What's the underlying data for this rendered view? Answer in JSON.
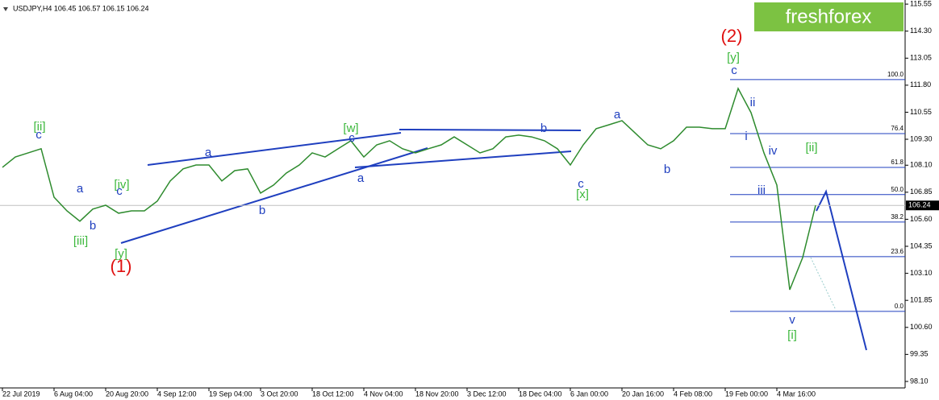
{
  "chart_data": {
    "type": "line",
    "title": "USDJPY,H4 106.45 106.57 106.15 106.24",
    "logo": "freshforex",
    "categories": [
      "22 Jul 2019",
      null,
      null,
      null,
      "6 Aug 04:00",
      null,
      null,
      null,
      "20 Aug 20:00",
      null,
      null,
      null,
      "4 Sep 12:00",
      null,
      null,
      null,
      "19 Sep 04:00",
      null,
      null,
      null,
      "3 Oct 20:00",
      null,
      null,
      null,
      "18 Oct 12:00",
      null,
      null,
      null,
      "4 Nov 04:00",
      null,
      null,
      null,
      "18 Nov 20:00",
      null,
      null,
      null,
      "3 Dec 12:00",
      null,
      null,
      null,
      "18 Dec 04:00",
      null,
      null,
      null,
      "6 Jan 00:00",
      null,
      null,
      null,
      "20 Jan 16:00",
      null,
      null,
      null,
      "4 Feb 08:00",
      null,
      null,
      null,
      "19 Feb 00:00",
      null,
      null,
      null,
      "4 Mar 16:00",
      null,
      null,
      null
    ],
    "series": [
      {
        "color": "#2e8b2e",
        "values": [
          108.0,
          108.48,
          108.67,
          108.86,
          106.62,
          105.99,
          105.51,
          106.07,
          106.25,
          105.88,
          105.99,
          105.99,
          106.44,
          107.37,
          107.93,
          108.11,
          108.11,
          107.37,
          107.85,
          107.93,
          106.81,
          107.18,
          107.74,
          108.11,
          108.67,
          108.48,
          108.86,
          109.23,
          108.48,
          109.04,
          109.23,
          108.86,
          108.67,
          108.86,
          109.04,
          109.41,
          109.04,
          108.67,
          108.86,
          109.41,
          109.49,
          109.41,
          109.23,
          108.86,
          108.11,
          109.04,
          109.79,
          109.97,
          110.16,
          109.6,
          109.04,
          108.86,
          109.23,
          109.86,
          109.86,
          109.79,
          109.79,
          111.65,
          110.53,
          108.67,
          107.18,
          102.34,
          103.83,
          106.24
        ]
      }
    ],
    "ylim": [
      97.8,
      115.74
    ],
    "yticks": [
      115.55,
      {
        "value": 114.3,
        "label": "114.30"
      },
      113.05,
      {
        "value": 111.8,
        "label": "111.80"
      },
      110.55,
      {
        "value": 109.3,
        "label": "109.30"
      },
      {
        "value": 108.1,
        "label": "108.10"
      },
      106.85,
      {
        "value": 105.6,
        "label": "105.60"
      },
      104.35,
      {
        "value": 103.1,
        "label": "103.10"
      },
      101.85,
      {
        "value": 100.6,
        "label": "100.60"
      },
      99.35,
      {
        "value": 98.1,
        "label": "98.10"
      }
    ],
    "current_price": 106.24,
    "fib_levels": [
      {
        "label": "100.0",
        "price": 112.06
      },
      {
        "label": "76.4",
        "price": 109.56
      },
      {
        "label": "61.8",
        "price": 108.0
      },
      {
        "label": "50.0",
        "price": 106.74
      },
      {
        "label": "38.2",
        "price": 105.47
      },
      {
        "label": "23.6",
        "price": 103.87
      },
      {
        "label": "0.0",
        "price": 101.34
      }
    ],
    "annotations": [
      {
        "text": "c",
        "color": "#1f3fbf"
      },
      {
        "text": "[ii]",
        "color": "#3cb83c"
      },
      {
        "text": "a",
        "color": "#1f3fbf"
      },
      {
        "text": "b",
        "color": "#1f3fbf"
      },
      {
        "text": "[iii]",
        "color": "#3cb83c"
      },
      {
        "text": "[iv]",
        "color": "#3cb83c"
      },
      {
        "text": "c",
        "color": "#1f3fbf"
      },
      {
        "text": "[y]",
        "color": "#3cb83c"
      },
      {
        "text": "(1)",
        "color": "#e01010"
      },
      {
        "text": "a",
        "color": "#1f3fbf"
      },
      {
        "text": "b",
        "color": "#1f3fbf"
      },
      {
        "text": "[w]",
        "color": "#3cb83c"
      },
      {
        "text": "c",
        "color": "#1f3fbf"
      },
      {
        "text": "a",
        "color": "#1f3fbf"
      },
      {
        "text": "b",
        "color": "#1f3fbf"
      },
      {
        "text": "c",
        "color": "#1f3fbf"
      },
      {
        "text": "[x]",
        "color": "#3cb83c"
      },
      {
        "text": "a",
        "color": "#1f3fbf"
      },
      {
        "text": "b",
        "color": "#1f3fbf"
      },
      {
        "text": "(2)",
        "color": "#e01010"
      },
      {
        "text": "[y]",
        "color": "#3cb83c"
      },
      {
        "text": "c",
        "color": "#1f3fbf"
      },
      {
        "text": "ii",
        "color": "#1f3fbf"
      },
      {
        "text": "i",
        "color": "#1f3fbf"
      },
      {
        "text": "iv",
        "color": "#1f3fbf"
      },
      {
        "text": "iii",
        "color": "#1f3fbf"
      },
      {
        "text": "[ii]",
        "color": "#3cb83c"
      },
      {
        "text": "v",
        "color": "#1f3fbf"
      },
      {
        "text": "[i]",
        "color": "#3cb83c"
      }
    ]
  }
}
